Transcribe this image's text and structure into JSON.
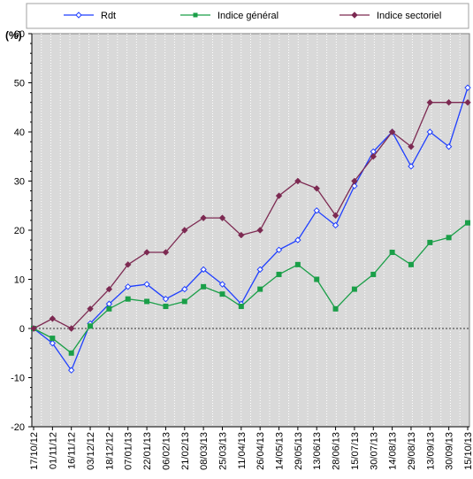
{
  "chart_data": {
    "type": "line",
    "y_unit_label": "(%)",
    "ylim": [
      -20,
      60
    ],
    "y_ticks": [
      -20,
      -10,
      0,
      10,
      20,
      30,
      40,
      50,
      60
    ],
    "x_tick_labels": [
      "17/10/12",
      "01/11/12",
      "16/11/12",
      "03/12/12",
      "18/12/12",
      "07/01/13",
      "22/01/13",
      "06/02/13",
      "21/02/13",
      "08/03/13",
      "25/03/13",
      "11/04/13",
      "26/04/13",
      "14/05/13",
      "29/05/13",
      "13/06/13",
      "28/06/13",
      "15/07/13",
      "30/07/13",
      "14/08/13",
      "29/08/13",
      "13/09/13",
      "30/09/13",
      "15/10/13"
    ],
    "grid": "vertical",
    "background": "#d9d9d9",
    "legend_position": "top",
    "x": [
      "17/10/12",
      "01/11/12",
      "16/11/12",
      "03/12/12",
      "18/12/12",
      "07/01/13",
      "22/01/13",
      "06/02/13",
      "21/02/13",
      "08/03/13",
      "25/03/13",
      "11/04/13",
      "26/04/13",
      "14/05/13",
      "29/05/13",
      "13/06/13",
      "28/06/13",
      "15/07/13",
      "30/07/13",
      "14/08/13",
      "29/08/13",
      "13/09/13",
      "30/09/13",
      "15/10/13"
    ],
    "series": [
      {
        "name": "Rdt",
        "color": "#1f3fff",
        "marker": "diamond-open",
        "values": [
          0,
          -3,
          -8.5,
          1,
          5,
          8.5,
          9,
          6,
          8,
          12,
          9,
          5,
          12,
          16,
          18,
          24,
          21,
          29,
          36,
          40,
          33,
          40,
          37,
          49
        ]
      },
      {
        "name": "Indice général",
        "color": "#1a9f48",
        "marker": "square",
        "values": [
          0,
          -2,
          -5,
          0.5,
          4,
          6,
          5.5,
          4.5,
          5.5,
          8.5,
          7,
          4.5,
          8,
          11,
          13,
          10,
          4,
          8,
          11,
          15.5,
          13,
          17.5,
          18.5,
          21.5
        ]
      },
      {
        "name": "Indice sectoriel",
        "color": "#7d2a52",
        "marker": "diamond",
        "values": [
          0,
          2,
          0,
          4,
          8,
          13,
          15.5,
          15.5,
          20,
          22.5,
          22.5,
          19,
          20,
          27,
          30,
          28.5,
          23,
          30,
          35,
          40,
          37,
          46,
          46,
          46
        ]
      }
    ]
  }
}
